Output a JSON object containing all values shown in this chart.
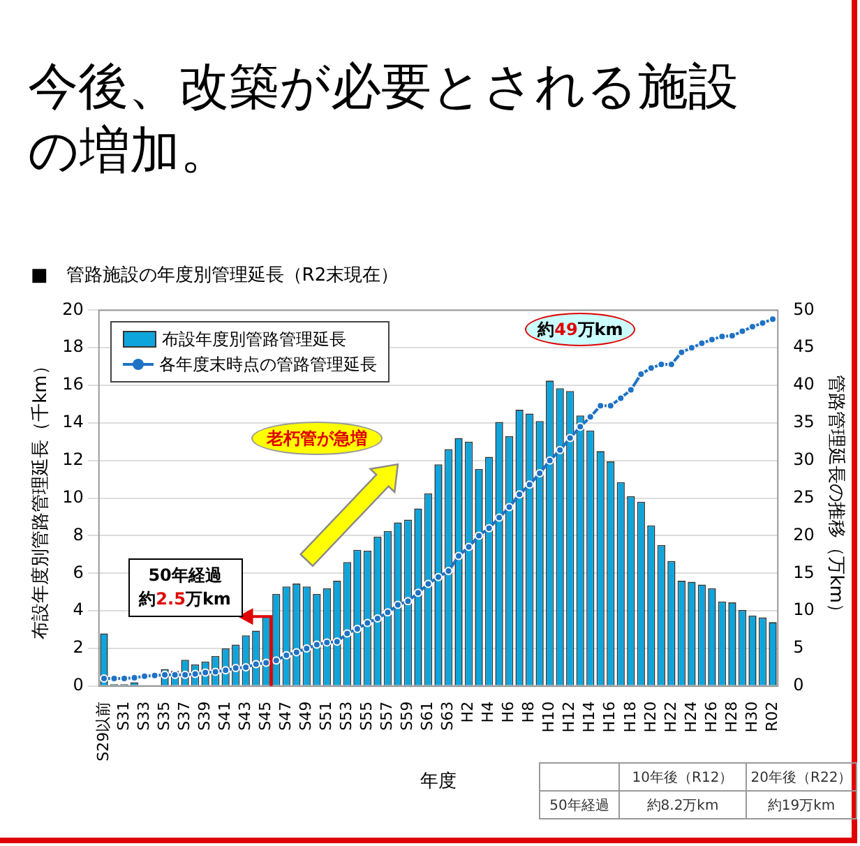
{
  "chart_data": {
    "type": "bar",
    "title": "今後、改築が必要とされる施設の増加。",
    "subtitle": "■　管路施設の年度別管理延長（R2末現在）",
    "categories": [
      "S29以前",
      null,
      "S31",
      null,
      "S33",
      null,
      "S35",
      null,
      "S37",
      null,
      "S39",
      null,
      "S41",
      null,
      "S43",
      null,
      "S45",
      null,
      "S47",
      null,
      "S49",
      null,
      "S51",
      null,
      "S53",
      null,
      "S55",
      null,
      "S57",
      null,
      "S59",
      null,
      "S61",
      null,
      "S63",
      null,
      "H2",
      null,
      "H4",
      null,
      "H6",
      null,
      "H8",
      null,
      "H10",
      null,
      "H12",
      null,
      "H14",
      null,
      "H16",
      null,
      "H18",
      null,
      "H20",
      null,
      "H22",
      null,
      "H24",
      null,
      "H26",
      null,
      "H28",
      null,
      "H30",
      null,
      "R02"
    ],
    "series": [
      {
        "name": "布設年度別管路管理延長",
        "color": "#0ea5dc",
        "values": [
          2.8,
          0.1,
          0.1,
          0.2,
          null,
          null,
          0.9,
          0.8,
          1.4,
          1.15,
          1.3,
          1.6,
          2.0,
          2.2,
          2.7,
          2.95,
          3.7,
          4.9,
          5.3,
          5.45,
          5.3,
          4.9,
          5.2,
          5.6,
          6.6,
          7.25,
          7.2,
          7.95,
          8.25,
          8.7,
          8.85,
          9.45,
          10.25,
          11.8,
          12.6,
          13.2,
          13.0,
          11.55,
          12.2,
          14.05,
          13.3,
          14.7,
          14.5,
          14.1,
          16.25,
          15.85,
          15.7,
          14.4,
          13.6,
          12.5,
          11.95,
          10.85,
          10.1,
          9.8,
          8.55,
          7.5,
          6.65,
          5.6,
          5.55,
          5.4,
          5.2,
          4.5,
          4.45,
          4.05,
          3.75,
          3.65,
          3.4
        ]
      },
      {
        "name": "各年度末時点の管路管理延長",
        "type": "line",
        "axis": "y2",
        "color": "#1f72c4",
        "marker": "circle",
        "values": [
          1.0,
          1.0,
          1.0,
          1.1,
          1.3,
          1.4,
          1.5,
          1.5,
          1.5,
          1.6,
          1.8,
          1.9,
          2.1,
          2.4,
          2.5,
          2.9,
          3.1,
          3.4,
          4.1,
          4.5,
          5.0,
          5.5,
          5.8,
          5.9,
          7.0,
          7.6,
          8.4,
          9.0,
          9.8,
          10.8,
          11.3,
          12.4,
          13.6,
          14.5,
          15.3,
          17.3,
          18.5,
          20.0,
          21.0,
          22.4,
          23.8,
          25.5,
          26.8,
          28.3,
          30.0,
          31.4,
          33.0,
          34.5,
          35.8,
          37.3,
          37.3,
          38.3,
          39.4,
          41.5,
          42.3,
          42.8,
          42.8,
          44.4,
          45.0,
          45.6,
          46.1,
          46.5,
          46.6,
          47.2,
          47.8,
          48.3,
          48.8
        ]
      }
    ],
    "xlabel": "年度",
    "ylabel": "布設年度別管路管理延長（千km）",
    "y2label": "管路管理延長の推移（万km）",
    "ylim": [
      0,
      20
    ],
    "yticks": [
      0,
      2,
      4,
      6,
      8,
      10,
      12,
      14,
      16,
      18,
      20
    ],
    "y2lim": [
      0,
      50
    ],
    "y2ticks": [
      0,
      5,
      10,
      15,
      20,
      25,
      30,
      35,
      40,
      45,
      50
    ],
    "grid": "y",
    "legend": "top left",
    "annotations": [
      "老朽管が急増",
      {
        "text": "50年経過約2.5万km",
        "x": "S45",
        "y": 3.7
      },
      "約49万km",
      "10年後（R12）",
      "20年後（R22）",
      "50年経過",
      "約8.2万km",
      "約19万km"
    ]
  }
}
